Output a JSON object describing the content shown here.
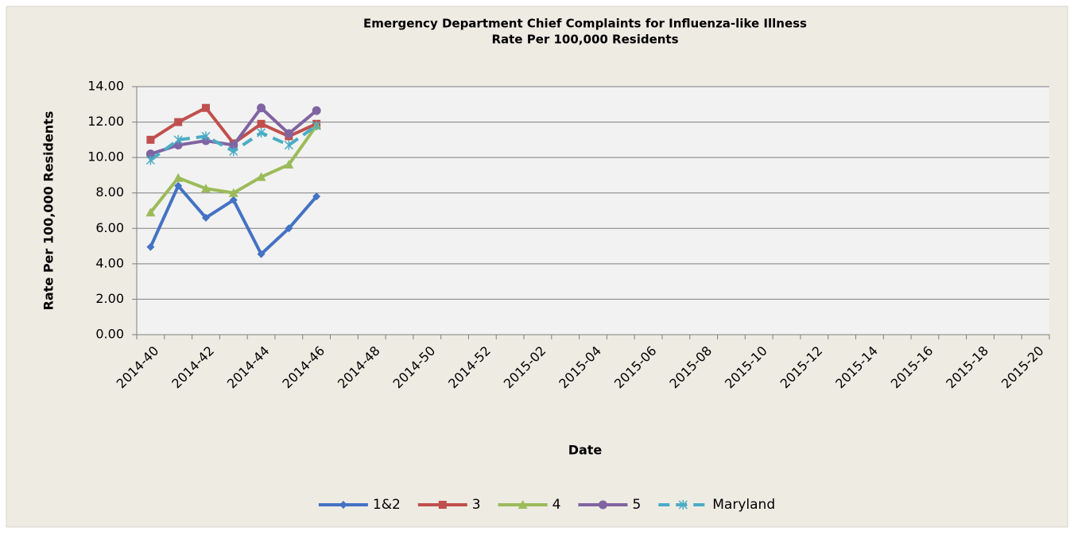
{
  "chart_data": {
    "type": "line",
    "title": "Emergency Department Chief Complaints for Influenza-like Illness",
    "subtitle": "Rate Per 100,000 Residents",
    "x_label": "Date",
    "y_label": "Rate Per 100,000 Residents",
    "categories": [
      "2014-40",
      null,
      "2014-42",
      null,
      "2014-44",
      null,
      "2014-46",
      null,
      "2014-48",
      null,
      "2014-50",
      null,
      "2014-52",
      null,
      "2015-02",
      null,
      "2015-04",
      null,
      "2015-06",
      null,
      "2015-08",
      null,
      "2015-10",
      null,
      "2015-12",
      null,
      "2015-14",
      null,
      "2015-16",
      null,
      "2015-18",
      null,
      "2015-20"
    ],
    "ylim": [
      0,
      14
    ],
    "yticks": [
      {
        "value": 0,
        "label": "0.00"
      },
      {
        "value": 2,
        "label": "2.00"
      },
      {
        "value": 4,
        "label": "4.00"
      },
      {
        "value": 6,
        "label": "6.00"
      },
      {
        "value": 8,
        "label": "8.00"
      },
      {
        "value": 10,
        "label": "10.00"
      },
      {
        "value": 12,
        "label": "12.00"
      },
      {
        "value": 14,
        "label": "14.00"
      }
    ],
    "grid": true,
    "legend": "bottom",
    "series": [
      {
        "name": "1&2",
        "color": "#4472c4",
        "marker": "diamond",
        "dashed": false,
        "values": [
          4.95,
          8.4,
          6.6,
          7.6,
          4.55,
          6.0,
          7.8,
          null,
          null,
          null,
          null,
          null,
          null,
          null,
          null,
          null,
          null,
          null,
          null,
          null,
          null,
          null,
          null,
          null,
          null,
          null,
          null,
          null,
          null,
          null,
          null,
          null,
          null
        ]
      },
      {
        "name": "3",
        "color": "#c0504d",
        "marker": "square",
        "dashed": false,
        "values": [
          11.0,
          12.0,
          12.8,
          10.8,
          11.9,
          11.2,
          11.9,
          null,
          null,
          null,
          null,
          null,
          null,
          null,
          null,
          null,
          null,
          null,
          null,
          null,
          null,
          null,
          null,
          null,
          null,
          null,
          null,
          null,
          null,
          null,
          null,
          null,
          null
        ]
      },
      {
        "name": "4",
        "color": "#9bbb59",
        "marker": "triangle",
        "dashed": false,
        "values": [
          6.9,
          8.85,
          8.25,
          8.0,
          8.9,
          9.6,
          11.8,
          null,
          null,
          null,
          null,
          null,
          null,
          null,
          null,
          null,
          null,
          null,
          null,
          null,
          null,
          null,
          null,
          null,
          null,
          null,
          null,
          null,
          null,
          null,
          null,
          null,
          null
        ]
      },
      {
        "name": "5",
        "color": "#8064a2",
        "marker": "circle",
        "dashed": false,
        "values": [
          10.2,
          10.7,
          10.95,
          10.7,
          12.8,
          11.35,
          12.65,
          null,
          null,
          null,
          null,
          null,
          null,
          null,
          null,
          null,
          null,
          null,
          null,
          null,
          null,
          null,
          null,
          null,
          null,
          null,
          null,
          null,
          null,
          null,
          null,
          null,
          null
        ]
      },
      {
        "name": "Maryland",
        "color": "#4bacc6",
        "marker": "star",
        "dashed": true,
        "values": [
          9.85,
          11.0,
          11.2,
          10.35,
          11.4,
          10.7,
          11.8,
          null,
          null,
          null,
          null,
          null,
          null,
          null,
          null,
          null,
          null,
          null,
          null,
          null,
          null,
          null,
          null,
          null,
          null,
          null,
          null,
          null,
          null,
          null,
          null,
          null,
          null
        ]
      }
    ]
  }
}
